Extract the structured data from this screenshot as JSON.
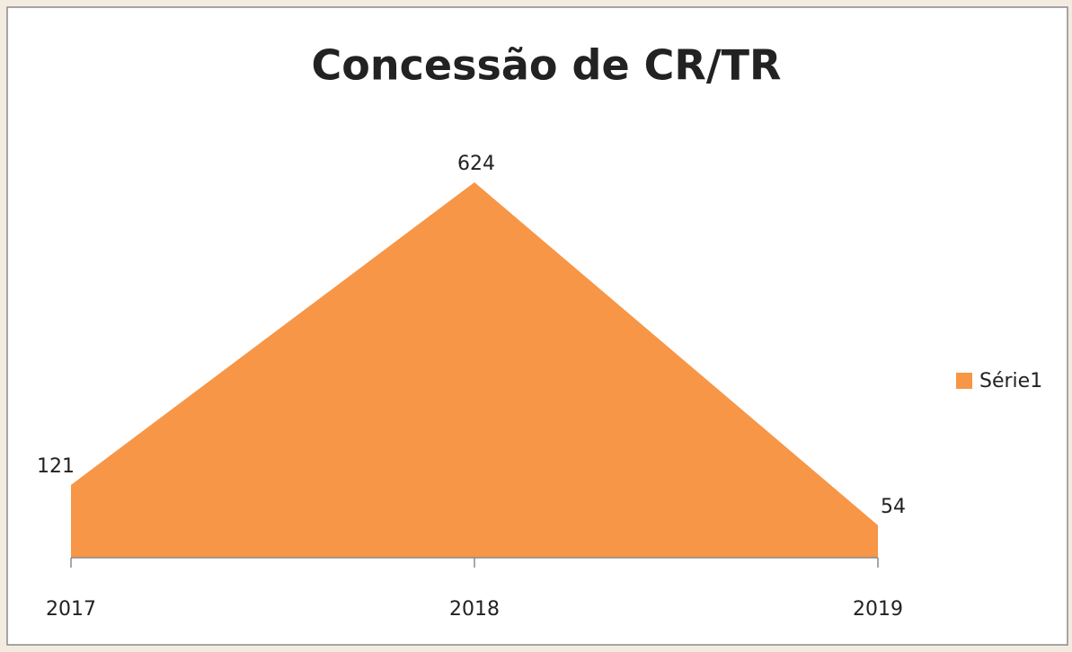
{
  "chart_data": {
    "type": "area",
    "title": "Concessão de CR/TR",
    "categories": [
      "2017",
      "2018",
      "2019"
    ],
    "series": [
      {
        "name": "Série1",
        "color": "#f79646",
        "values": [
          121,
          624,
          54
        ]
      }
    ],
    "legend": "right"
  }
}
